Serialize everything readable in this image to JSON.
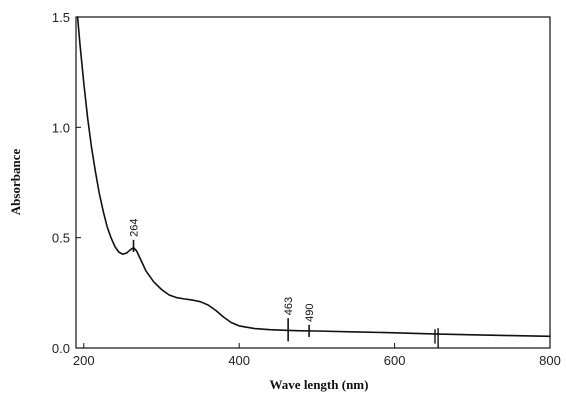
{
  "chart_data": {
    "type": "line",
    "title": "",
    "xlabel": "Wave length (nm)",
    "ylabel": "Absorbance",
    "xlim": [
      190,
      800
    ],
    "ylim": [
      0.0,
      1.5
    ],
    "grid": false,
    "x_ticks": [
      {
        "value": 200,
        "label": "200"
      },
      {
        "value": 400,
        "label": "400"
      },
      {
        "value": 600,
        "label": "600"
      },
      {
        "value": 800,
        "label": "800"
      }
    ],
    "y_ticks": [
      {
        "value": 0.0,
        "label": "0.0"
      },
      {
        "value": 0.5,
        "label": "0.5"
      },
      {
        "value": 1.0,
        "label": "1.0"
      },
      {
        "value": 1.5,
        "label": "1.5"
      }
    ],
    "series": [
      {
        "color": "#111111",
        "x": [
          192,
          195,
          200,
          205,
          210,
          215,
          220,
          225,
          230,
          235,
          240,
          245,
          250,
          255,
          260,
          264,
          268,
          272,
          276,
          280,
          290,
          300,
          310,
          320,
          330,
          340,
          350,
          360,
          370,
          380,
          390,
          400,
          420,
          440,
          460,
          480,
          500,
          550,
          600,
          650,
          700,
          750,
          800
        ],
        "y": [
          1.5,
          1.38,
          1.2,
          1.04,
          0.91,
          0.8,
          0.7,
          0.62,
          0.55,
          0.5,
          0.46,
          0.435,
          0.425,
          0.43,
          0.445,
          0.455,
          0.44,
          0.41,
          0.38,
          0.35,
          0.3,
          0.265,
          0.24,
          0.228,
          0.222,
          0.217,
          0.21,
          0.195,
          0.17,
          0.14,
          0.115,
          0.1,
          0.088,
          0.083,
          0.08,
          0.078,
          0.077,
          0.073,
          0.069,
          0.064,
          0.06,
          0.056,
          0.053
        ]
      }
    ],
    "annotations": [
      {
        "x": 264,
        "label": "264",
        "y_low": 0.435,
        "y_high": 0.49
      },
      {
        "x": 463,
        "label": "463",
        "y_low": 0.03,
        "y_high": 0.135
      },
      {
        "x": 490,
        "label": "490",
        "y_low": 0.05,
        "y_high": 0.105
      }
    ],
    "noise_spikes": [
      {
        "x": 652,
        "y_low": 0.02,
        "y_high": 0.085
      },
      {
        "x": 656,
        "y_low": 0.0,
        "y_high": 0.09
      }
    ]
  }
}
